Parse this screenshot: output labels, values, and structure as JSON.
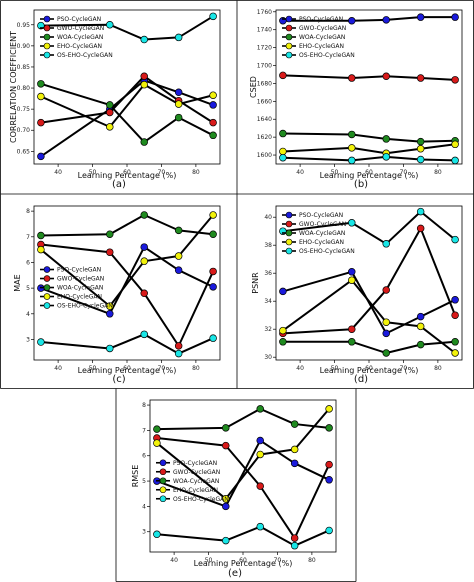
{
  "colors": {
    "PSO-CycleGAN": "#1a1adc",
    "GWO-CycleGAN": "#d81a1a",
    "WOA-CycleGAN": "#1f8a1f",
    "EHO-CycleGAN": "#f2f20a",
    "OS-EHO-CycleGAN": "#19e6e6"
  },
  "chart_data": [
    {
      "panel": "(a)",
      "type": "line",
      "xlabel": "Learning Percentage (%)",
      "ylabel": "CORRELATION COEFFICIENT",
      "x": [
        35,
        55,
        65,
        75,
        85
      ],
      "xticks": [
        40,
        50,
        60,
        70,
        80
      ],
      "xlim": [
        33,
        87
      ],
      "ylim": [
        0.62,
        0.985
      ],
      "yticks": [
        0.65,
        0.7,
        0.75,
        0.8,
        0.85,
        0.9,
        0.95
      ],
      "ytick_labels": [
        "0.65",
        "0.70",
        "0.75",
        "0.80",
        "0.85",
        "0.90",
        "0.95"
      ],
      "legend": "top-left",
      "series": [
        {
          "name": "PSO-CycleGAN",
          "values": [
            0.638,
            0.75,
            0.818,
            0.79,
            0.76
          ]
        },
        {
          "name": "GWO-CycleGAN",
          "values": [
            0.718,
            0.742,
            0.828,
            0.77,
            0.718
          ]
        },
        {
          "name": "WOA-CycleGAN",
          "values": [
            0.81,
            0.76,
            0.672,
            0.73,
            0.688
          ]
        },
        {
          "name": "EHO-CycleGAN",
          "values": [
            0.78,
            0.708,
            0.808,
            0.762,
            0.783
          ]
        },
        {
          "name": "OS-EHO-CycleGAN",
          "values": [
            0.948,
            0.95,
            0.915,
            0.92,
            0.97
          ]
        }
      ]
    },
    {
      "panel": "(b)",
      "type": "line",
      "xlabel": "Learning Percentage (%)",
      "ylabel": "CSED",
      "x": [
        35,
        55,
        65,
        75,
        85
      ],
      "xticks": [
        40,
        50,
        60,
        70,
        80
      ],
      "xlim": [
        33,
        87
      ],
      "ylim": [
        1590,
        1762
      ],
      "yticks": [
        1600,
        1620,
        1640,
        1660,
        1680,
        1700,
        1720,
        1740,
        1760
      ],
      "ytick_labels": [
        "1600",
        "1620",
        "1640",
        "1660",
        "1680",
        "1700",
        "1720",
        "1740",
        "1760"
      ],
      "legend": "top-left",
      "series": [
        {
          "name": "PSO-CycleGAN",
          "values": [
            1750,
            1750,
            1751,
            1754,
            1754
          ]
        },
        {
          "name": "GWO-CycleGAN",
          "values": [
            1689,
            1686,
            1688,
            1686,
            1684
          ]
        },
        {
          "name": "WOA-CycleGAN",
          "values": [
            1624,
            1623,
            1618,
            1615,
            1616
          ]
        },
        {
          "name": "EHO-CycleGAN",
          "values": [
            1604,
            1608,
            1602,
            1607,
            1612
          ]
        },
        {
          "name": "OS-EHO-CycleGAN",
          "values": [
            1597,
            1594,
            1598,
            1595,
            1594
          ]
        }
      ]
    },
    {
      "panel": "(c)",
      "type": "line",
      "xlabel": "Learning Percentage (%)",
      "ylabel": "MAE",
      "x": [
        35,
        55,
        65,
        75,
        85
      ],
      "xticks": [
        40,
        50,
        60,
        70,
        80
      ],
      "xlim": [
        33,
        87
      ],
      "ylim": [
        2.2,
        8.2
      ],
      "yticks": [
        3,
        4,
        5,
        6,
        7,
        8
      ],
      "ytick_labels": [
        "3",
        "4",
        "5",
        "6",
        "7",
        "8"
      ],
      "legend": "center-left",
      "series": [
        {
          "name": "PSO-CycleGAN",
          "values": [
            5.0,
            4.0,
            6.6,
            5.7,
            5.05
          ]
        },
        {
          "name": "GWO-CycleGAN",
          "values": [
            6.7,
            6.4,
            4.8,
            2.75,
            5.65
          ]
        },
        {
          "name": "WOA-CycleGAN",
          "values": [
            7.05,
            7.1,
            7.85,
            7.25,
            7.1
          ]
        },
        {
          "name": "EHO-CycleGAN",
          "values": [
            6.5,
            4.3,
            6.05,
            6.25,
            7.85
          ]
        },
        {
          "name": "OS-EHO-CycleGAN",
          "values": [
            2.9,
            2.65,
            3.2,
            2.45,
            3.05
          ]
        }
      ]
    },
    {
      "panel": "(d)",
      "type": "line",
      "xlabel": "Learning Percentage (%)",
      "ylabel": "PSNR",
      "x": [
        35,
        55,
        65,
        75,
        85
      ],
      "xticks": [
        40,
        50,
        60,
        70,
        80
      ],
      "xlim": [
        33,
        87
      ],
      "ylim": [
        29.8,
        40.8
      ],
      "yticks": [
        30,
        32,
        34,
        36,
        38,
        40
      ],
      "ytick_labels": [
        "30",
        "32",
        "34",
        "36",
        "38",
        "40"
      ],
      "legend": "top-left",
      "series": [
        {
          "name": "PSO-CycleGAN",
          "values": [
            34.7,
            36.1,
            31.7,
            32.9,
            34.1
          ]
        },
        {
          "name": "GWO-CycleGAN",
          "values": [
            31.7,
            32.0,
            34.8,
            39.2,
            33.0
          ]
        },
        {
          "name": "WOA-CycleGAN",
          "values": [
            31.1,
            31.1,
            30.3,
            30.9,
            31.1
          ]
        },
        {
          "name": "EHO-CycleGAN",
          "values": [
            31.9,
            35.5,
            32.5,
            32.2,
            30.3
          ]
        },
        {
          "name": "OS-EHO-CycleGAN",
          "values": [
            39.0,
            39.6,
            38.1,
            40.4,
            38.4
          ]
        }
      ]
    },
    {
      "panel": "(e)",
      "type": "line",
      "xlabel": "Learning Percentage (%)",
      "ylabel": "RMSE",
      "x": [
        35,
        55,
        65,
        75,
        85
      ],
      "xticks": [
        40,
        50,
        60,
        70,
        80
      ],
      "xlim": [
        33,
        87
      ],
      "ylim": [
        2.2,
        8.2
      ],
      "yticks": [
        3,
        4,
        5,
        6,
        7,
        8
      ],
      "ytick_labels": [
        "3",
        "4",
        "5",
        "6",
        "7",
        "8"
      ],
      "legend": "center-left",
      "series": [
        {
          "name": "PSO-CycleGAN",
          "values": [
            5.0,
            4.0,
            6.6,
            5.7,
            5.05
          ]
        },
        {
          "name": "GWO-CycleGAN",
          "values": [
            6.7,
            6.4,
            4.8,
            2.75,
            5.65
          ]
        },
        {
          "name": "WOA-CycleGAN",
          "values": [
            7.05,
            7.1,
            7.85,
            7.25,
            7.1
          ]
        },
        {
          "name": "EHO-CycleGAN",
          "values": [
            6.5,
            4.3,
            6.05,
            6.25,
            7.85
          ]
        },
        {
          "name": "OS-EHO-CycleGAN",
          "values": [
            2.9,
            2.65,
            3.2,
            2.45,
            3.05
          ]
        }
      ]
    }
  ]
}
